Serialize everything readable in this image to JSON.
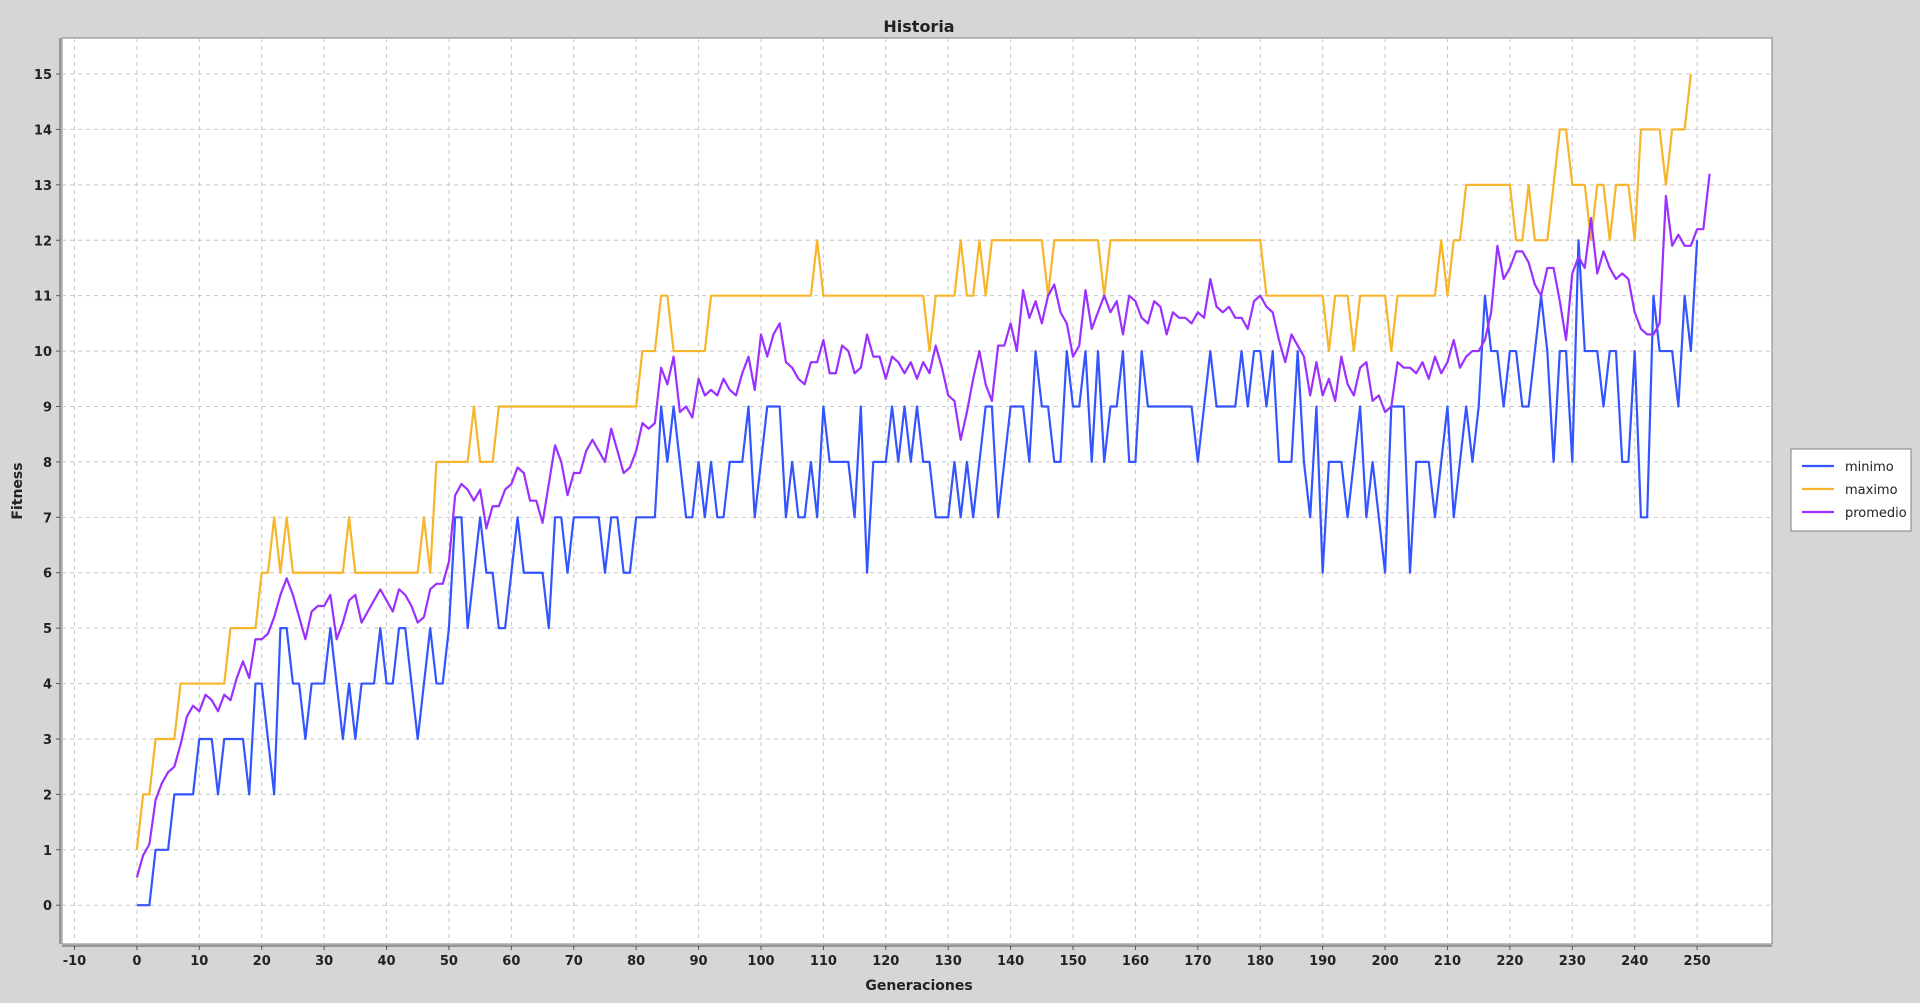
{
  "chart_data": {
    "type": "line",
    "title": "Historia",
    "xlabel": "Generaciones",
    "ylabel": "Fitness",
    "xlim": [
      -12,
      262
    ],
    "ylim": [
      -0.7,
      15.65
    ],
    "x_ticks": [
      -10,
      0,
      10,
      20,
      30,
      40,
      50,
      60,
      70,
      80,
      90,
      100,
      110,
      120,
      130,
      140,
      150,
      160,
      170,
      180,
      190,
      200,
      210,
      220,
      230,
      240,
      250
    ],
    "y_ticks": [
      0,
      1,
      2,
      3,
      4,
      5,
      6,
      7,
      8,
      9,
      10,
      11,
      12,
      13,
      14,
      15
    ],
    "grid": true,
    "legend_position": "right",
    "background_color": "#d6d6d6",
    "plot_background_color": "#ffffff",
    "grid_color": "#c8c8c8",
    "series": [
      {
        "name": "minimo",
        "color": "#3355ff",
        "values": [
          0,
          0,
          0,
          1,
          1,
          1,
          2,
          2,
          2,
          2,
          3,
          3,
          3,
          2,
          3,
          3,
          3,
          3,
          2,
          4,
          4,
          3,
          2,
          5,
          5,
          4,
          4,
          3,
          4,
          4,
          4,
          5,
          4,
          3,
          4,
          3,
          4,
          4,
          4,
          5,
          4,
          4,
          5,
          5,
          4,
          3,
          4,
          5,
          4,
          4,
          5,
          7,
          7,
          5,
          6,
          7,
          6,
          6,
          5,
          5,
          6,
          7,
          6,
          6,
          6,
          6,
          5,
          7,
          7,
          6,
          7,
          7,
          7,
          7,
          7,
          6,
          7,
          7,
          6,
          6,
          7,
          7,
          7,
          7,
          9,
          8,
          9,
          8,
          7,
          7,
          8,
          7,
          8,
          7,
          7,
          8,
          8,
          8,
          9,
          7,
          8,
          9,
          9,
          9,
          7,
          8,
          7,
          7,
          8,
          7,
          9,
          8,
          8,
          8,
          8,
          7,
          9,
          6,
          8,
          8,
          8,
          9,
          8,
          9,
          8,
          9,
          8,
          8,
          7,
          7,
          7,
          8,
          7,
          8,
          7,
          8,
          9,
          9,
          7,
          8,
          9,
          9,
          9,
          8,
          10,
          9,
          9,
          8,
          8,
          10,
          9,
          9,
          10,
          8,
          10,
          8,
          9,
          9,
          10,
          8,
          8,
          10,
          9,
          9,
          9,
          9,
          9,
          9,
          9,
          9,
          8,
          9,
          10,
          9,
          9,
          9,
          9,
          10,
          9,
          10,
          10,
          9,
          10,
          8,
          8,
          8,
          10,
          8,
          7,
          9,
          6,
          8,
          8,
          8,
          7,
          8,
          9,
          7,
          8,
          7,
          6,
          9,
          9,
          9,
          6,
          8,
          8,
          8,
          7,
          8,
          9,
          7,
          8,
          9,
          8,
          9,
          11,
          10,
          10,
          9,
          10,
          10,
          9,
          9,
          10,
          11,
          10,
          8,
          10,
          10,
          8,
          12,
          10,
          10,
          10,
          9,
          10,
          10,
          8,
          8,
          10,
          7,
          7,
          11,
          10,
          10,
          10,
          9,
          11,
          10,
          12
        ]
      },
      {
        "name": "maximo",
        "color": "#f7b52c",
        "values": [
          1,
          2,
          2,
          3,
          3,
          3,
          3,
          4,
          4,
          4,
          4,
          4,
          4,
          4,
          4,
          5,
          5,
          5,
          5,
          5,
          6,
          6,
          7,
          6,
          7,
          6,
          6,
          6,
          6,
          6,
          6,
          6,
          6,
          6,
          7,
          6,
          6,
          6,
          6,
          6,
          6,
          6,
          6,
          6,
          6,
          6,
          7,
          6,
          8,
          8,
          8,
          8,
          8,
          8,
          9,
          8,
          8,
          8,
          9,
          9,
          9,
          9,
          9,
          9,
          9,
          9,
          9,
          9,
          9,
          9,
          9,
          9,
          9,
          9,
          9,
          9,
          9,
          9,
          9,
          9,
          9,
          10,
          10,
          10,
          11,
          11,
          10,
          10,
          10,
          10,
          10,
          10,
          11,
          11,
          11,
          11,
          11,
          11,
          11,
          11,
          11,
          11,
          11,
          11,
          11,
          11,
          11,
          11,
          11,
          12,
          11,
          11,
          11,
          11,
          11,
          11,
          11,
          11,
          11,
          11,
          11,
          11,
          11,
          11,
          11,
          11,
          11,
          10,
          11,
          11,
          11,
          11,
          12,
          11,
          11,
          12,
          11,
          12,
          12,
          12,
          12,
          12,
          12,
          12,
          12,
          12,
          11,
          12,
          12,
          12,
          12,
          12,
          12,
          12,
          12,
          11,
          12,
          12,
          12,
          12,
          12,
          12,
          12,
          12,
          12,
          12,
          12,
          12,
          12,
          12,
          12,
          12,
          12,
          12,
          12,
          12,
          12,
          12,
          12,
          12,
          12,
          11,
          11,
          11,
          11,
          11,
          11,
          11,
          11,
          11,
          11,
          10,
          11,
          11,
          11,
          10,
          11,
          11,
          11,
          11,
          11,
          10,
          11,
          11,
          11,
          11,
          11,
          11,
          11,
          12,
          11,
          12,
          12,
          13,
          13,
          13,
          13,
          13,
          13,
          13,
          13,
          12,
          12,
          13,
          12,
          12,
          12,
          13,
          14,
          14,
          13,
          13,
          13,
          12,
          13,
          13,
          12,
          13,
          13,
          13,
          12,
          14,
          14,
          14,
          14,
          13,
          14,
          14,
          14,
          15
        ]
      },
      {
        "name": "promedio",
        "color": "#9b30ff",
        "values": [
          0.5,
          0.9,
          1.1,
          1.9,
          2.2,
          2.4,
          2.5,
          2.9,
          3.4,
          3.6,
          3.5,
          3.8,
          3.7,
          3.5,
          3.8,
          3.7,
          4.1,
          4.4,
          4.1,
          4.8,
          4.8,
          4.9,
          5.2,
          5.6,
          5.9,
          5.6,
          5.2,
          4.8,
          5.3,
          5.4,
          5.4,
          5.6,
          4.8,
          5.1,
          5.5,
          5.6,
          5.1,
          5.3,
          5.5,
          5.7,
          5.5,
          5.3,
          5.7,
          5.6,
          5.4,
          5.1,
          5.2,
          5.7,
          5.8,
          5.8,
          6.2,
          7.4,
          7.6,
          7.5,
          7.3,
          7.5,
          6.8,
          7.2,
          7.2,
          7.5,
          7.6,
          7.9,
          7.8,
          7.3,
          7.3,
          6.9,
          7.6,
          8.3,
          8.0,
          7.4,
          7.8,
          7.8,
          8.2,
          8.4,
          8.2,
          8.0,
          8.6,
          8.2,
          7.8,
          7.9,
          8.2,
          8.7,
          8.6,
          8.7,
          9.7,
          9.4,
          9.9,
          8.9,
          9.0,
          8.8,
          9.5,
          9.2,
          9.3,
          9.2,
          9.5,
          9.3,
          9.2,
          9.6,
          9.9,
          9.3,
          10.3,
          9.9,
          10.3,
          10.5,
          9.8,
          9.7,
          9.5,
          9.4,
          9.8,
          9.8,
          10.2,
          9.6,
          9.6,
          10.1,
          10.0,
          9.6,
          9.7,
          10.3,
          9.9,
          9.9,
          9.5,
          9.9,
          9.8,
          9.6,
          9.8,
          9.5,
          9.8,
          9.6,
          10.1,
          9.7,
          9.2,
          9.1,
          8.4,
          8.9,
          9.5,
          10.0,
          9.4,
          9.1,
          10.1,
          10.1,
          10.5,
          10.0,
          11.1,
          10.6,
          10.9,
          10.5,
          11.0,
          11.2,
          10.7,
          10.5,
          9.9,
          10.1,
          11.1,
          10.4,
          10.7,
          11.0,
          10.7,
          10.9,
          10.3,
          11.0,
          10.9,
          10.6,
          10.5,
          10.9,
          10.8,
          10.3,
          10.7,
          10.6,
          10.6,
          10.5,
          10.7,
          10.6,
          11.3,
          10.8,
          10.7,
          10.8,
          10.6,
          10.6,
          10.4,
          10.9,
          11.0,
          10.8,
          10.7,
          10.2,
          9.8,
          10.3,
          10.1,
          9.9,
          9.2,
          9.8,
          9.2,
          9.5,
          9.1,
          9.9,
          9.4,
          9.2,
          9.7,
          9.8,
          9.1,
          9.2,
          8.9,
          9.0,
          9.8,
          9.7,
          9.7,
          9.6,
          9.8,
          9.5,
          9.9,
          9.6,
          9.8,
          10.2,
          9.7,
          9.9,
          10.0,
          10.0,
          10.2,
          10.7,
          11.9,
          11.3,
          11.5,
          11.8,
          11.8,
          11.6,
          11.2,
          11.0,
          11.5,
          11.5,
          10.9,
          10.2,
          11.4,
          11.7,
          11.5,
          12.4,
          11.4,
          11.8,
          11.5,
          11.3,
          11.4,
          11.3,
          10.7,
          10.4,
          10.3,
          10.3,
          10.5,
          12.8,
          11.9,
          12.1,
          11.9,
          11.9,
          12.2,
          12.2,
          13.2
        ]
      }
    ]
  }
}
